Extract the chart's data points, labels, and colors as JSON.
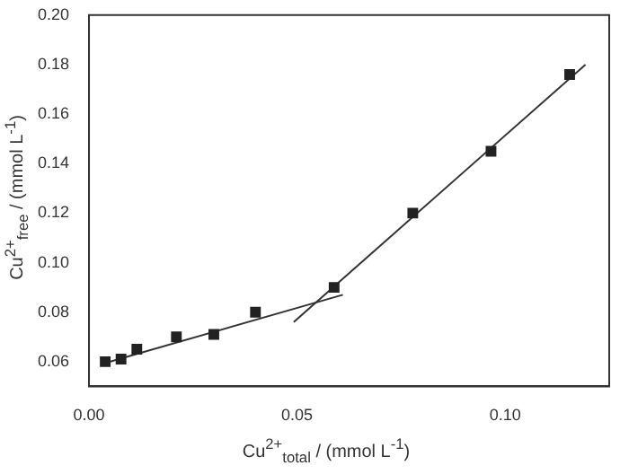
{
  "chart_data": {
    "type": "scatter",
    "xlabel": "Cu$^{2+}$$_{total}$ / (mmol L$^{-1}$)",
    "ylabel": "Cu$^{2+}$$_{free}$ / (mmol L$^{-1}$)",
    "x": [
      0.0039,
      0.0077,
      0.0115,
      0.021,
      0.03,
      0.04,
      0.0589,
      0.0778,
      0.0966,
      0.1155
    ],
    "series": [
      {
        "color": "#222222",
        "values": [
          0.06,
          0.061,
          0.065,
          0.07,
          0.071,
          0.08,
          0.09,
          0.12,
          0.145,
          0.176
        ]
      },
      {
        "type": "line",
        "marker": "none",
        "color": "#333333",
        "x": [
          0.004,
          0.061
        ],
        "values": [
          0.0595,
          0.087
        ]
      },
      {
        "type": "line",
        "marker": "none",
        "color": "#333333",
        "x": [
          0.0492,
          0.1193
        ],
        "values": [
          0.076,
          0.18
        ]
      }
    ],
    "marker": "square",
    "line_style": "solid",
    "grid": false,
    "legend": false,
    "xlim": [
      0,
      0.125
    ],
    "xticks": [
      {
        "value": 0,
        "label": "0.00"
      },
      {
        "value": 0.05,
        "label": "0.05"
      },
      {
        "value": 0.1,
        "label": "0.10"
      }
    ],
    "ylim": [
      0.05,
      0.2
    ],
    "yticks": [
      {
        "value": 0.06,
        "label": "0.06"
      },
      {
        "value": 0.08,
        "label": "0.08"
      },
      {
        "value": 0.1,
        "label": "0.10"
      },
      {
        "value": 0.12,
        "label": "0.12"
      },
      {
        "value": 0.14,
        "label": "0.14"
      },
      {
        "value": 0.16,
        "label": "0.16"
      },
      {
        "value": 0.18,
        "label": "0.18"
      },
      {
        "value": 0.2,
        "label": "0.20"
      }
    ]
  }
}
